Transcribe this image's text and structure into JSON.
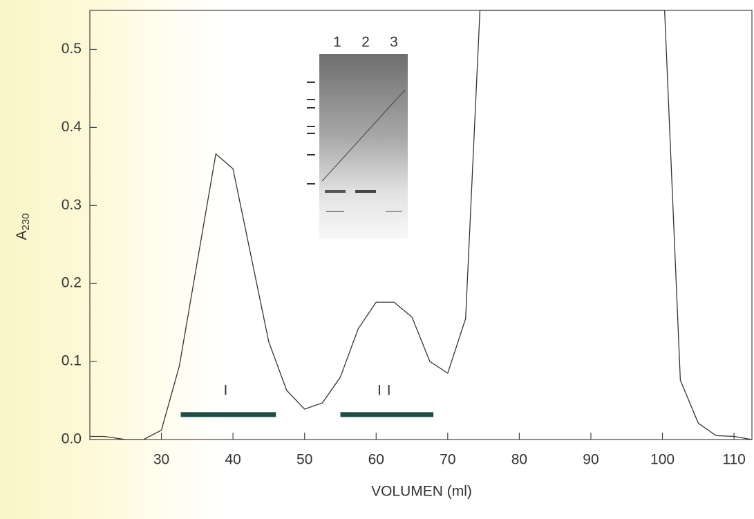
{
  "chart_data": {
    "type": "line",
    "x_label": "VOLUMEN (ml)",
    "y_label": "A",
    "y_label_sub": "230",
    "xlim": [
      20,
      112.5
    ],
    "ylim": [
      0,
      0.55
    ],
    "xticks": [
      30,
      40,
      50,
      60,
      70,
      80,
      90,
      100,
      110
    ],
    "yticks": [
      {
        "value": 0,
        "label": "0.0"
      },
      0.1,
      0.2,
      0.3,
      0.4,
      0.5
    ],
    "series": [
      {
        "color": "#333333",
        "x": [
          20,
          22,
          25,
          27.5,
          30,
          32.5,
          37.6,
          40,
          45,
          47.5,
          50,
          52.5,
          55,
          57.5,
          60,
          62.5,
          65,
          67.5,
          70,
          72.5,
          74.5,
          100.3,
          102.5,
          105,
          107.5,
          110,
          112.5
        ],
        "values": [
          0.004,
          0.004,
          0,
          0,
          0.012,
          0.094,
          0.366,
          0.347,
          0.125,
          0.063,
          0.039,
          0.047,
          0.08,
          0.142,
          0.176,
          0.176,
          0.157,
          0.1,
          0.085,
          0.155,
          0.55,
          0.55,
          0.076,
          0.021,
          0.005,
          0.004,
          0
        ]
      }
    ],
    "fractions": [
      {
        "label": "I",
        "xstart": 32.7,
        "xend": 46,
        "y": 0.032,
        "color": "#1d4d47"
      },
      {
        "label": "II",
        "xstart": 55,
        "xend": 68,
        "y": 0.032,
        "color": "#1d4d47"
      }
    ],
    "inset_lanes": [
      "1",
      "2",
      "3"
    ]
  }
}
